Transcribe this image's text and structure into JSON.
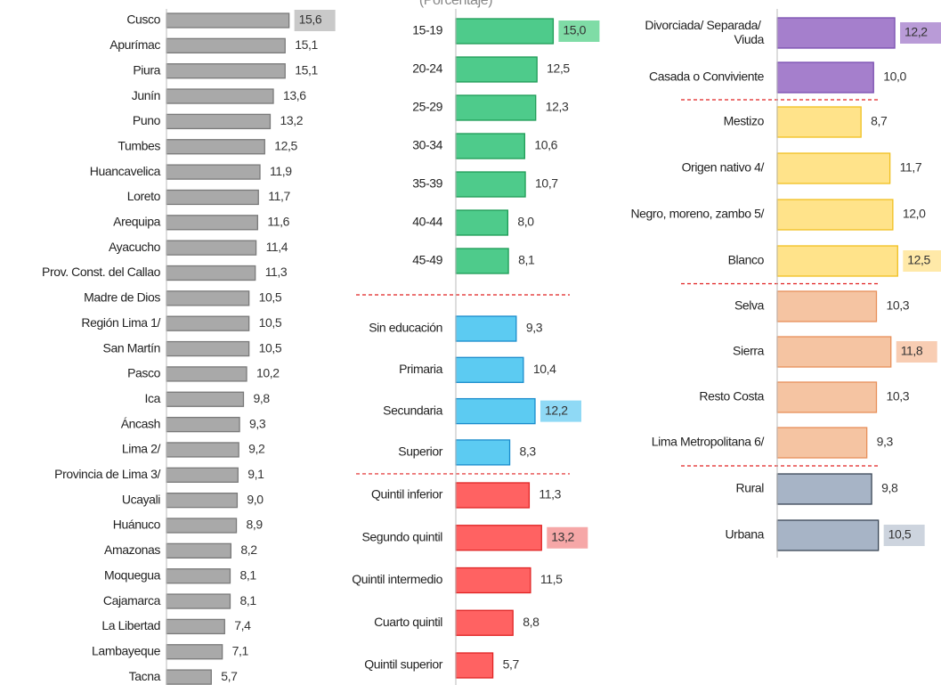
{
  "chart_data": [
    {
      "type": "bar",
      "orientation": "horizontal",
      "xlim": [
        0,
        17
      ],
      "groups": [
        {
          "color": "#a9a9a9",
          "edge": "#7a7a7a",
          "label_bg": "#c9c9c9",
          "categories": [
            "Cusco",
            "Apurímac",
            "Piura",
            "Junín",
            "Puno",
            "Tumbes",
            "Huancavelica",
            "Loreto",
            "Arequipa",
            "Ayacucho",
            "Prov. Const. del Callao",
            "Madre de Dios",
            "Región Lima 1/",
            "San Martín",
            "Pasco",
            "Ica",
            "Áncash",
            "Lima 2/",
            "Provincia de Lima 3/",
            "Ucayali",
            "Huánuco",
            "Amazonas",
            "Moquegua",
            "Cajamarca",
            "La Libertad",
            "Lambayeque",
            "Tacna"
          ],
          "values": [
            15.6,
            15.1,
            15.1,
            13.6,
            13.2,
            12.5,
            11.9,
            11.7,
            11.6,
            11.4,
            11.3,
            10.5,
            10.5,
            10.5,
            10.2,
            9.8,
            9.3,
            9.2,
            9.1,
            9.0,
            8.9,
            8.2,
            8.1,
            8.1,
            7.4,
            7.1,
            5.7
          ],
          "value_labels": [
            "15,6",
            "15,1",
            "15,1",
            "13,6",
            "13,2",
            "12,5",
            "11,9",
            "11,7",
            "11,6",
            "11,4",
            "11,3",
            "10,5",
            "10,5",
            "10,5",
            "10,2",
            "9,8",
            "9,3",
            "9,2",
            "9,1",
            "9,0",
            "8,9",
            "8,2",
            "8,1",
            "8,1",
            "7,4",
            "7,1",
            "5,7"
          ]
        }
      ]
    },
    {
      "type": "bar",
      "orientation": "horizontal",
      "subtitle": "(Porcentaje)",
      "xlim": [
        0,
        17
      ],
      "groups": [
        {
          "color": "#4ecb8b",
          "edge": "#1e9b56",
          "label_bg": "#7fdca6",
          "categories": [
            "15-19",
            "20-24",
            "25-29",
            "30-34",
            "35-39",
            "40-44",
            "45-49"
          ],
          "values": [
            15.0,
            12.5,
            12.3,
            10.6,
            10.7,
            8.0,
            8.1
          ],
          "value_labels": [
            "15,0",
            "12,5",
            "12,3",
            "10,6",
            "10,7",
            "8,0",
            "8,1"
          ]
        },
        {
          "color": "#5ccbf2",
          "edge": "#1a8ccc",
          "label_bg": "#8fd9f5",
          "categories": [
            "Sin educación",
            "Primaria",
            "Secundaria",
            "Superior"
          ],
          "values": [
            9.3,
            10.4,
            12.2,
            8.3
          ],
          "value_labels": [
            "9,3",
            "10,4",
            "12,2",
            "8,3"
          ]
        },
        {
          "color": "#ff6262",
          "edge": "#e02424",
          "label_bg": "#f6a7a7",
          "categories": [
            "Quintil inferior",
            "Segundo quintil",
            "Quintil intermedio",
            "Cuarto quintil",
            "Quintil superior"
          ],
          "values": [
            11.3,
            13.2,
            11.5,
            8.8,
            5.7
          ],
          "value_labels": [
            "11,3",
            "13,2",
            "11,5",
            "8,8",
            "5,7"
          ]
        }
      ]
    },
    {
      "type": "bar",
      "orientation": "horizontal",
      "xlim": [
        0,
        17
      ],
      "groups": [
        {
          "color": "#a57fcc",
          "edge": "#7a4fb0",
          "label_bg": "#b99bd7",
          "categories": [
            "Divorciada/ Separada/ Viuda",
            "Casada o Conviviente"
          ],
          "values": [
            12.2,
            10.0
          ],
          "value_labels": [
            "12,2",
            "10,0"
          ]
        },
        {
          "color": "#ffe38a",
          "edge": "#f0c020",
          "label_bg": "#ffe9a8",
          "categories": [
            "Mestizo",
            "Origen nativo 4/",
            "Negro, moreno, zambo 5/",
            "Blanco"
          ],
          "values": [
            8.7,
            11.7,
            12.0,
            12.5
          ],
          "value_labels": [
            "8,7",
            "11,7",
            "12,0",
            "12,5"
          ]
        },
        {
          "color": "#f5c4a2",
          "edge": "#e8905a",
          "label_bg": "#f8cdb3",
          "categories": [
            "Selva",
            "Sierra",
            "Resto Costa",
            "Lima Metropolitana 6/"
          ],
          "values": [
            10.3,
            11.8,
            10.3,
            9.3
          ],
          "value_labels": [
            "10,3",
            "11,8",
            "10,3",
            "9,3"
          ]
        },
        {
          "color": "#a7b4c6",
          "edge": "#3a4656",
          "label_bg": "#cdd4de",
          "categories": [
            "Rural",
            "Urbana"
          ],
          "values": [
            9.8,
            10.5
          ],
          "value_labels": [
            "9,8",
            "10,5"
          ]
        }
      ]
    }
  ]
}
